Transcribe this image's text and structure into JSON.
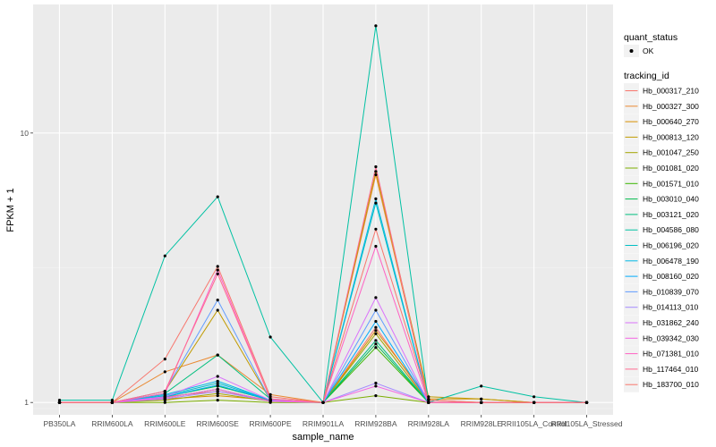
{
  "chart_data": {
    "type": "line",
    "xlabel": "sample_name",
    "ylabel": "FPKM + 1",
    "y_scale": "log10",
    "ylim": [
      0.9,
      30
    ],
    "y_ticks": [
      1,
      10
    ],
    "y_tick_labels": [
      "1",
      "10"
    ],
    "categories": [
      "PB350LA",
      "RRIM600LA",
      "RRIM600LE",
      "RRIM600SE",
      "RRIM600PE",
      "RRIM901LA",
      "RRIM928BA",
      "RRIM928LA",
      "RRIM928LE",
      "RRII105LA_Control",
      "RRII105LA_Stressed"
    ],
    "legend_shape": {
      "title": "quant_status",
      "entries": [
        "OK"
      ]
    },
    "legend_title": "tracking_id",
    "series": [
      {
        "name": "Hb_000317_210",
        "color": "#F8766D",
        "values": [
          1.0,
          1.0,
          1.05,
          1.1,
          1.02,
          1.0,
          1.9,
          1.0,
          1.0,
          1.0,
          1.0
        ]
      },
      {
        "name": "Hb_000327_300",
        "color": "#E98A33",
        "values": [
          1.0,
          1.0,
          1.3,
          1.5,
          1.07,
          1.0,
          7.0,
          1.02,
          1.0,
          1.0,
          1.0
        ]
      },
      {
        "name": "Hb_000640_270",
        "color": "#D89000",
        "values": [
          1.0,
          1.0,
          1.03,
          1.06,
          1.02,
          1.0,
          1.85,
          1.03,
          1.03,
          1.0,
          1.0
        ]
      },
      {
        "name": "Hb_000813_120",
        "color": "#C09B00",
        "values": [
          1.0,
          1.0,
          1.1,
          2.2,
          1.02,
          1.0,
          7.2,
          1.05,
          1.03,
          1.0,
          1.0
        ]
      },
      {
        "name": "Hb_001047_250",
        "color": "#A3A500",
        "values": [
          1.0,
          1.0,
          1.02,
          1.08,
          1.01,
          1.0,
          1.8,
          1.0,
          1.0,
          1.0,
          1.0
        ]
      },
      {
        "name": "Hb_001081_020",
        "color": "#7CAE00",
        "values": [
          1.0,
          1.0,
          1.0,
          1.02,
          1.0,
          1.0,
          1.06,
          1.0,
          1.0,
          1.0,
          1.0
        ]
      },
      {
        "name": "Hb_001571_010",
        "color": "#39B600",
        "values": [
          1.0,
          1.0,
          1.04,
          1.12,
          1.01,
          1.0,
          1.6,
          1.0,
          1.0,
          1.0,
          1.0
        ]
      },
      {
        "name": "Hb_003010_040",
        "color": "#00BB4E",
        "values": [
          1.0,
          1.0,
          1.05,
          1.15,
          1.02,
          1.0,
          1.65,
          1.0,
          1.0,
          1.0,
          1.0
        ]
      },
      {
        "name": "Hb_003121_020",
        "color": "#00BF7D",
        "values": [
          1.0,
          1.0,
          1.08,
          1.5,
          1.03,
          1.0,
          1.7,
          1.0,
          1.0,
          1.0,
          1.0
        ]
      },
      {
        "name": "Hb_004586_080",
        "color": "#00C1A3",
        "values": [
          1.02,
          1.02,
          3.5,
          5.8,
          1.75,
          1.0,
          25.0,
          1.0,
          1.15,
          1.05,
          1.0
        ]
      },
      {
        "name": "Hb_006196_020",
        "color": "#00BFC4",
        "values": [
          1.0,
          1.0,
          1.06,
          1.18,
          1.02,
          1.0,
          5.5,
          1.0,
          1.0,
          1.0,
          1.0
        ]
      },
      {
        "name": "Hb_006478_190",
        "color": "#00B8E5",
        "values": [
          1.0,
          1.0,
          1.07,
          1.2,
          1.02,
          1.0,
          5.7,
          1.0,
          1.0,
          1.0,
          1.0
        ]
      },
      {
        "name": "Hb_008160_020",
        "color": "#00ABFD",
        "values": [
          1.0,
          1.0,
          1.05,
          1.16,
          1.02,
          1.0,
          2.0,
          1.0,
          1.0,
          1.0,
          1.0
        ]
      },
      {
        "name": "Hb_010839_070",
        "color": "#619CFF",
        "values": [
          1.0,
          1.0,
          1.1,
          2.4,
          1.02,
          1.0,
          2.2,
          1.0,
          1.0,
          1.0,
          1.0
        ]
      },
      {
        "name": "Hb_014113_010",
        "color": "#A58AFF",
        "values": [
          1.0,
          1.0,
          1.03,
          1.1,
          1.01,
          1.0,
          1.18,
          1.0,
          1.0,
          1.0,
          1.0
        ]
      },
      {
        "name": "Hb_031862_240",
        "color": "#DB72FB",
        "values": [
          1.0,
          1.0,
          1.05,
          1.25,
          1.02,
          1.0,
          2.45,
          1.0,
          1.0,
          1.0,
          1.0
        ]
      },
      {
        "name": "Hb_039342_030",
        "color": "#F564E3",
        "values": [
          1.0,
          1.0,
          1.04,
          1.12,
          1.01,
          1.0,
          1.15,
          1.0,
          1.0,
          1.0,
          1.0
        ]
      },
      {
        "name": "Hb_071381_010",
        "color": "#FF61C3",
        "values": [
          1.0,
          1.0,
          1.08,
          3.1,
          1.03,
          1.0,
          3.8,
          1.0,
          1.0,
          1.0,
          1.0
        ]
      },
      {
        "name": "Hb_117464_010",
        "color": "#FF6C91",
        "values": [
          1.0,
          1.0,
          1.1,
          3.0,
          1.03,
          1.0,
          7.5,
          1.0,
          1.0,
          1.0,
          1.0
        ]
      },
      {
        "name": "Hb_183700_010",
        "color": "#F8766D",
        "values": [
          1.0,
          1.0,
          1.45,
          3.2,
          1.05,
          1.0,
          4.4,
          1.02,
          1.0,
          1.0,
          1.0
        ]
      }
    ]
  }
}
